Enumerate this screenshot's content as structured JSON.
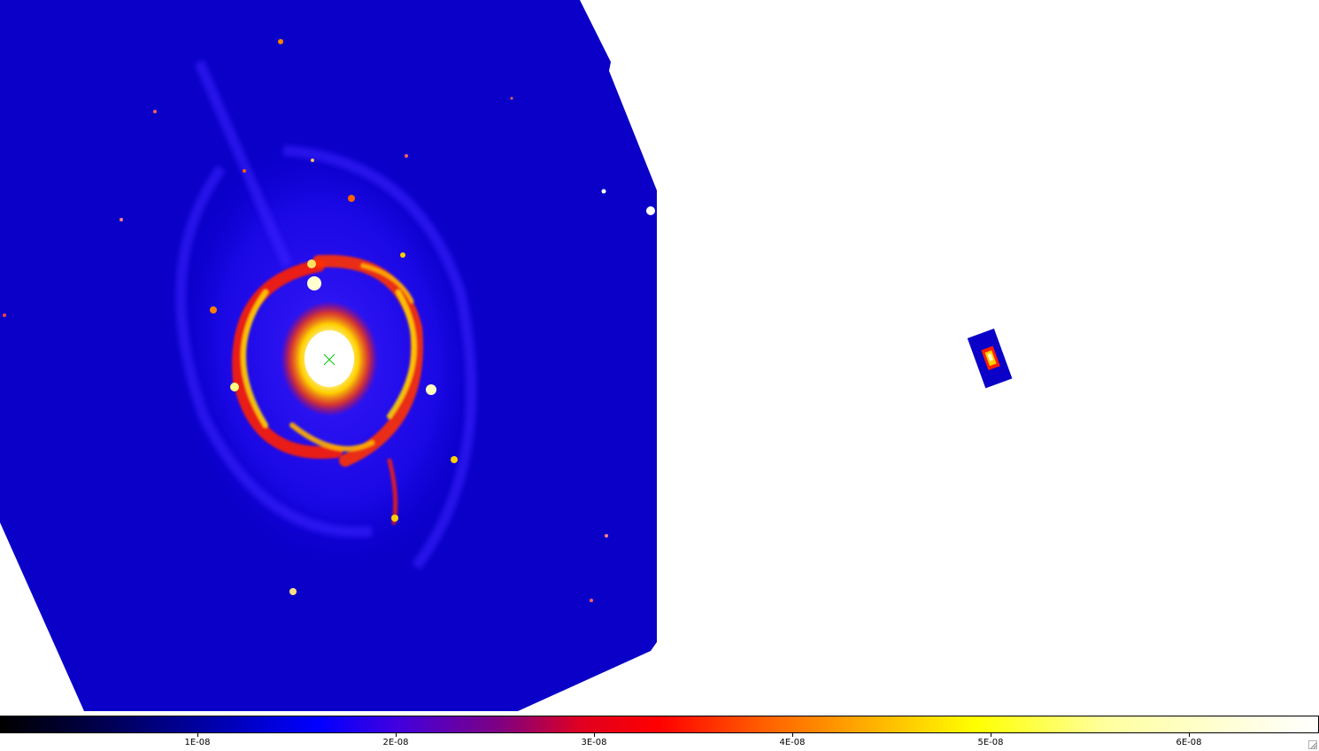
{
  "viewer": {
    "colormap": "heat",
    "background_color": "#ffffff",
    "marker_color": "#00c800",
    "icons": [
      "galaxy-image",
      "cross-marker-icon",
      "resize-grip-icon"
    ]
  },
  "colorbar": {
    "ticks": [
      {
        "label": "1E-08",
        "value": 1e-08
      },
      {
        "label": "2E-08",
        "value": 2e-08
      },
      {
        "label": "3E-08",
        "value": 3e-08
      },
      {
        "label": "4E-08",
        "value": 4e-08
      },
      {
        "label": "5E-08",
        "value": 5e-08
      },
      {
        "label": "6E-08",
        "value": 6e-08
      }
    ]
  }
}
